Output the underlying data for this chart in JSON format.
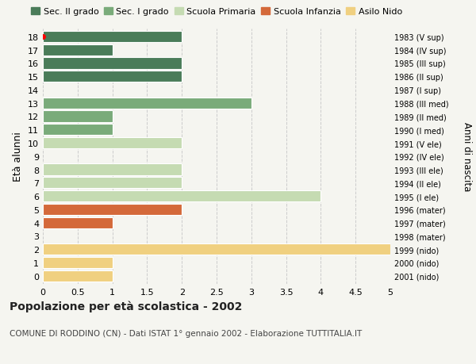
{
  "ages": [
    18,
    17,
    16,
    15,
    14,
    13,
    12,
    11,
    10,
    9,
    8,
    7,
    6,
    5,
    4,
    3,
    2,
    1,
    0
  ],
  "right_labels": [
    "1983 (V sup)",
    "1984 (IV sup)",
    "1985 (III sup)",
    "1986 (II sup)",
    "1987 (I sup)",
    "1988 (III med)",
    "1989 (II med)",
    "1990 (I med)",
    "1991 (V ele)",
    "1992 (IV ele)",
    "1993 (III ele)",
    "1994 (II ele)",
    "1995 (I ele)",
    "1996 (mater)",
    "1997 (mater)",
    "1998 (mater)",
    "1999 (nido)",
    "2000 (nido)",
    "2001 (nido)"
  ],
  "values": [
    2,
    1,
    2,
    2,
    0,
    3,
    1,
    1,
    2,
    0,
    2,
    2,
    4,
    2,
    1,
    0,
    5,
    1,
    1
  ],
  "categories": [
    "Sec. II grado",
    "Sec. I grado",
    "Scuola Primaria",
    "Scuola Infanzia",
    "Asilo Nido"
  ],
  "colors": {
    "Sec. II grado": "#4a7c59",
    "Sec. I grado": "#7aab7a",
    "Scuola Primaria": "#c5dbb2",
    "Scuola Infanzia": "#d4693a",
    "Asilo Nido": "#f0d080"
  },
  "bar_color_map": [
    "Sec. II grado",
    "Sec. II grado",
    "Sec. II grado",
    "Sec. II grado",
    "Sec. II grado",
    "Sec. I grado",
    "Sec. I grado",
    "Sec. I grado",
    "Scuola Primaria",
    "Scuola Primaria",
    "Scuola Primaria",
    "Scuola Primaria",
    "Scuola Primaria",
    "Scuola Infanzia",
    "Scuola Infanzia",
    "Scuola Infanzia",
    "Asilo Nido",
    "Asilo Nido",
    "Asilo Nido"
  ],
  "xlim": [
    0,
    5.0
  ],
  "xticks": [
    0,
    0.5,
    1.0,
    1.5,
    2.0,
    2.5,
    3.0,
    3.5,
    4.0,
    4.5,
    5.0
  ],
  "title": "Popolazione per età scolastica - 2002",
  "subtitle": "COMUNE DI RODDINO (CN) - Dati ISTAT 1° gennaio 2002 - Elaborazione TUTTITALIA.IT",
  "ylabel": "Età alunni",
  "right_ylabel": "Anni di nascita",
  "background_color": "#f5f5f0",
  "plot_bg_color": "#f5f5f0",
  "bar_height": 0.85,
  "grid_color": "#cccccc",
  "red_dot_age": 18,
  "legend_fontsize": 8,
  "axis_fontsize": 8,
  "title_fontsize": 10,
  "subtitle_fontsize": 7.5
}
